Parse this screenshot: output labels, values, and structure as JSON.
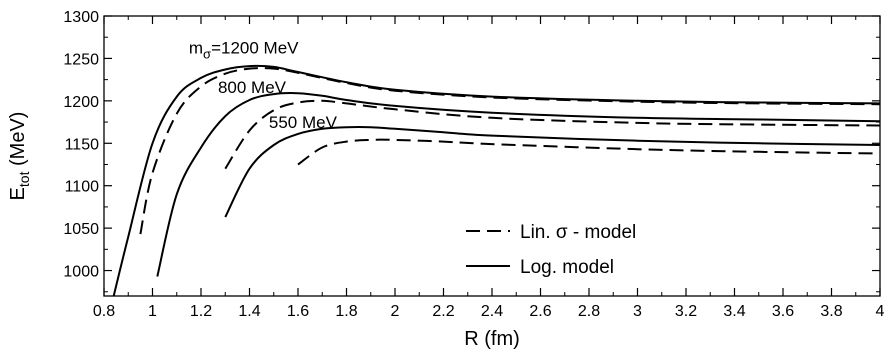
{
  "chart_data": {
    "type": "line",
    "xlabel": {
      "main": "R",
      "rest": " (fm)"
    },
    "ylabel": {
      "main": "E",
      "sub": "tot",
      "rest": " (MeV)"
    },
    "xlim": [
      0.8,
      4.0
    ],
    "ylim": [
      970,
      1300
    ],
    "x_ticks": [
      0.8,
      1.0,
      1.2,
      1.4,
      1.6,
      1.8,
      2.0,
      2.2,
      2.4,
      2.6,
      2.8,
      3.0,
      3.2,
      3.4,
      3.6,
      3.8,
      4.0
    ],
    "x_tick_labels": [
      "0.8",
      "1",
      "1.2",
      "1.4",
      "1.6",
      "1.8",
      "2",
      "2.2",
      "2.4",
      "2.6",
      "2.8",
      "3",
      "3.2",
      "3.4",
      "3.6",
      "3.8",
      "4"
    ],
    "y_ticks": [
      1000,
      1050,
      1100,
      1150,
      1200,
      1250,
      1300
    ],
    "y_tick_labels": [
      "1000",
      "1050",
      "1100",
      "1150",
      "1200",
      "1250",
      "1300"
    ],
    "grid": false,
    "legend_position": "lower-right",
    "legend": [
      {
        "label": "Lin. σ - model",
        "style": "dashed"
      },
      {
        "label": "Log. model",
        "style": "solid"
      }
    ],
    "annotations": [
      {
        "id": "m1200",
        "parts": {
          "main": "m",
          "sub": "σ",
          "rest": "=1200 MeV"
        },
        "x": 1.15,
        "y": 1256
      },
      {
        "id": "m800",
        "parts": {
          "main": "800 MeV",
          "sub": "",
          "rest": ""
        },
        "x": 1.27,
        "y": 1209
      },
      {
        "id": "m550",
        "parts": {
          "main": "550 MeV",
          "sub": "",
          "rest": ""
        },
        "x": 1.48,
        "y": 1168
      }
    ],
    "series": [
      {
        "group": "1200 MeV",
        "model": "Log. model",
        "style": "solid",
        "x": [
          0.84,
          0.9,
          1.0,
          1.1,
          1.2,
          1.3,
          1.4,
          1.5,
          1.6,
          1.8,
          2.0,
          2.4,
          3.0,
          3.5,
          4.0
        ],
        "y": [
          970,
          1040,
          1150,
          1205,
          1227,
          1237,
          1241,
          1240,
          1234,
          1222,
          1213,
          1205,
          1200,
          1198,
          1197
        ]
      },
      {
        "group": "1200 MeV",
        "model": "Lin. σ - model",
        "style": "dashed",
        "x": [
          0.95,
          1.0,
          1.1,
          1.2,
          1.3,
          1.4,
          1.5,
          1.6,
          1.8,
          2.0,
          2.4,
          3.0,
          3.5,
          4.0
        ],
        "y": [
          1043,
          1115,
          1185,
          1217,
          1232,
          1238,
          1238,
          1233,
          1221,
          1212,
          1204,
          1199,
          1197,
          1196
        ]
      },
      {
        "group": "800 MeV",
        "model": "Log. model",
        "style": "solid",
        "x": [
          1.02,
          1.1,
          1.2,
          1.3,
          1.4,
          1.5,
          1.6,
          1.7,
          1.8,
          2.0,
          2.4,
          3.0,
          3.5,
          4.0
        ],
        "y": [
          993,
          1090,
          1145,
          1182,
          1201,
          1208,
          1209,
          1206,
          1201,
          1194,
          1186,
          1180,
          1178,
          1176
        ]
      },
      {
        "group": "800 MeV",
        "model": "Lin. σ - model",
        "style": "dashed",
        "x": [
          1.3,
          1.4,
          1.5,
          1.6,
          1.7,
          1.8,
          2.0,
          2.4,
          3.0,
          3.5,
          4.0
        ],
        "y": [
          1120,
          1165,
          1189,
          1198,
          1200,
          1197,
          1190,
          1180,
          1174,
          1172,
          1171
        ]
      },
      {
        "group": "550 MeV",
        "model": "Log. model",
        "style": "solid",
        "x": [
          1.3,
          1.4,
          1.5,
          1.6,
          1.7,
          1.8,
          1.9,
          2.0,
          2.2,
          2.4,
          3.0,
          3.5,
          4.0
        ],
        "y": [
          1063,
          1120,
          1148,
          1161,
          1167,
          1169,
          1169,
          1167,
          1163,
          1159,
          1153,
          1150,
          1148
        ]
      },
      {
        "group": "550 MeV",
        "model": "Lin. σ - model",
        "style": "dashed",
        "x": [
          1.6,
          1.7,
          1.8,
          1.9,
          2.0,
          2.2,
          2.4,
          3.0,
          3.5,
          4.0
        ],
        "y": [
          1125,
          1145,
          1152,
          1154,
          1154,
          1152,
          1149,
          1143,
          1140,
          1138
        ]
      }
    ]
  }
}
